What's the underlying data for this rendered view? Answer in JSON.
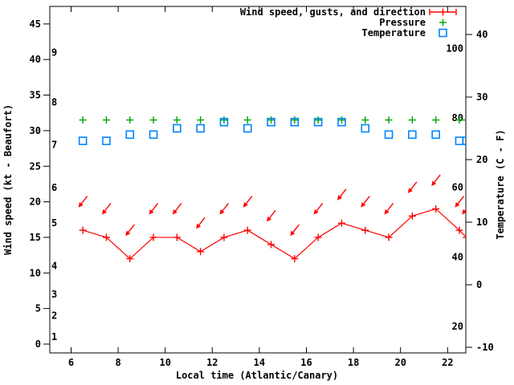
{
  "figure": {
    "background": "#ffffff",
    "legend": {
      "wind_label": "Wind speed, gusts, and direction",
      "pressure_label": "Pressure",
      "temperature_label": "Temperature"
    },
    "x_axis_label": "Local time (Atlantic/Canary)",
    "left_axis_label": "Wind speed (kt - Beaufort)",
    "right_axis_label": "Temperature (C - F)"
  },
  "colors": {
    "wind": "#ff0000",
    "pressure": "#00a400",
    "temperature": "#0084ff",
    "frame": "#000000"
  },
  "chart_data": {
    "type": "line",
    "title": "",
    "xlabel": "Local time (Atlantic/Canary)",
    "ylabel_left": "Wind speed (kt - Beaufort)",
    "ylabel_right": "Temperature (C - F)",
    "legend_position": "top-right-inside",
    "grid": false,
    "x_ticks_hours": [
      6,
      8,
      10,
      12,
      14,
      16,
      18,
      20,
      22
    ],
    "left_ticks_kt": [
      0,
      5,
      10,
      15,
      20,
      25,
      30,
      35,
      40,
      45
    ],
    "beaufort_scale_labels": [
      {
        "beaufort": 1,
        "at_kt": 1
      },
      {
        "beaufort": 2,
        "at_kt": 4
      },
      {
        "beaufort": 3,
        "at_kt": 7
      },
      {
        "beaufort": 4,
        "at_kt": 11
      },
      {
        "beaufort": 5,
        "at_kt": 17
      },
      {
        "beaufort": 6,
        "at_kt": 22
      },
      {
        "beaufort": 7,
        "at_kt": 28
      },
      {
        "beaufort": 8,
        "at_kt": 34
      },
      {
        "beaufort": 9,
        "at_kt": 41
      }
    ],
    "right_ticks_c": [
      -10,
      0,
      10,
      20,
      30,
      40
    ],
    "right_inner_labels_f": [
      20,
      40,
      60,
      80,
      100
    ],
    "xlim_hours": [
      5.1,
      22.8
    ],
    "left_ylim_kt": [
      -1.2,
      47.5
    ],
    "right_ylim_c": [
      -10.9,
      44.5
    ],
    "x_hours": [
      6.5,
      7.5,
      8.5,
      9.5,
      10.5,
      11.5,
      12.5,
      13.5,
      14.5,
      15.5,
      16.5,
      17.5,
      18.5,
      19.5,
      20.5,
      21.5,
      22.5,
      22.8
    ],
    "series": [
      {
        "name": "wind_speed_kt",
        "marker": "plus-on-line",
        "values": [
          16,
          15,
          12,
          15,
          15,
          13,
          15,
          16,
          14,
          12,
          15,
          17,
          16,
          15,
          18,
          19,
          16,
          15
        ]
      },
      {
        "name": "wind_gust_kt",
        "marker": "direction-arrow",
        "values": [
          20,
          19,
          16,
          19,
          19,
          17,
          19,
          20,
          18,
          16,
          19,
          21,
          20,
          19,
          22,
          23,
          20,
          19
        ]
      },
      {
        "name": "wind_direction",
        "note": "all arrows point down-left (wind from NE)",
        "values": [
          "NE",
          "NE",
          "NE",
          "NE",
          "NE",
          "NE",
          "NE",
          "NE",
          "NE",
          "NE",
          "NE",
          "NE",
          "NE",
          "NE",
          "NE",
          "NE",
          "NE",
          "NE"
        ]
      },
      {
        "name": "pressure",
        "marker": "plus",
        "note": "plotted as a nearly flat row; no pressure scale is visible on either axis",
        "plot_level_on_left_axis": 31.5
      },
      {
        "name": "temperature_c",
        "marker": "open-square",
        "values": [
          23,
          23,
          24,
          24,
          25,
          25,
          26,
          25,
          26,
          26,
          26,
          26,
          25,
          24,
          24,
          24,
          23,
          23
        ]
      }
    ]
  }
}
